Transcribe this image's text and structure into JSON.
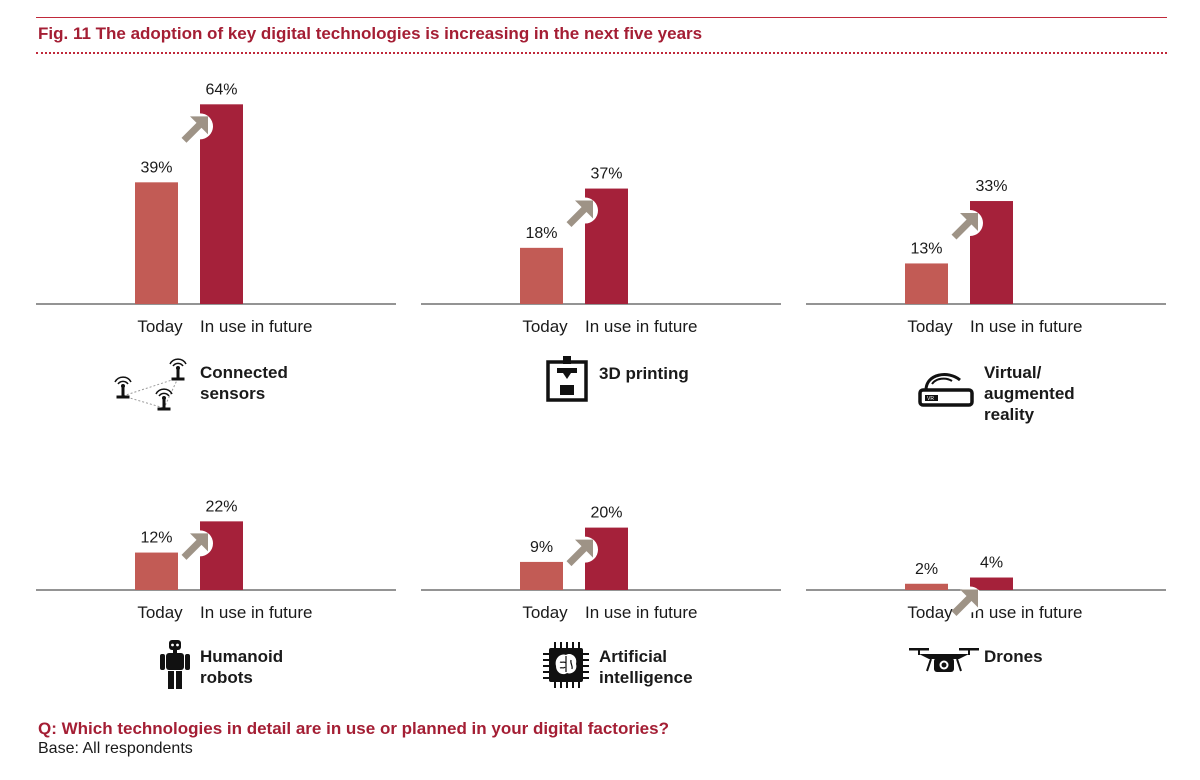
{
  "figure": {
    "title": "Fig. 11  The adoption of key digital technologies is increasing in the next five years",
    "question": "Q: Which technologies in detail are in use or planned in your digital factories?",
    "base": "Base: All respondents"
  },
  "colors": {
    "title_red": "#a41e34",
    "today_bar": "#c25b55",
    "future_bar": "#a5213a",
    "arrow": "#9e9386",
    "axis": "#555555"
  },
  "chart_data": [
    {
      "type": "bar",
      "technology": "Connected sensors",
      "categories": [
        "Today",
        "In use in future"
      ],
      "values": [
        39,
        64
      ],
      "labels": [
        "39%",
        "64%"
      ],
      "ylim": [
        0,
        70
      ]
    },
    {
      "type": "bar",
      "technology": "3D printing",
      "categories": [
        "Today",
        "In use in future"
      ],
      "values": [
        18,
        37
      ],
      "labels": [
        "18%",
        "37%"
      ],
      "ylim": [
        0,
        70
      ]
    },
    {
      "type": "bar",
      "technology": "Virtual/\naugmented\nreality",
      "categories": [
        "Today",
        "In use in future"
      ],
      "values": [
        13,
        33
      ],
      "labels": [
        "13%",
        "33%"
      ],
      "ylim": [
        0,
        70
      ]
    },
    {
      "type": "bar",
      "technology": "Humanoid\nrobots",
      "categories": [
        "Today",
        "In use in future"
      ],
      "values": [
        12,
        22
      ],
      "labels": [
        "12%",
        "22%"
      ],
      "ylim": [
        0,
        70
      ]
    },
    {
      "type": "bar",
      "technology": "Artificial\nintelligence",
      "categories": [
        "Today",
        "In use in future"
      ],
      "values": [
        9,
        20
      ],
      "labels": [
        "9%",
        "20%"
      ],
      "ylim": [
        0,
        70
      ]
    },
    {
      "type": "bar",
      "technology": "Drones",
      "categories": [
        "Today",
        "In use in future"
      ],
      "values": [
        2,
        4
      ],
      "labels": [
        "2%",
        "4%"
      ],
      "ylim": [
        0,
        70
      ]
    }
  ],
  "icons": [
    "connected-sensors-icon",
    "3d-printer-icon",
    "vr-headset-icon",
    "robot-icon",
    "ai-chip-icon",
    "drone-icon"
  ]
}
